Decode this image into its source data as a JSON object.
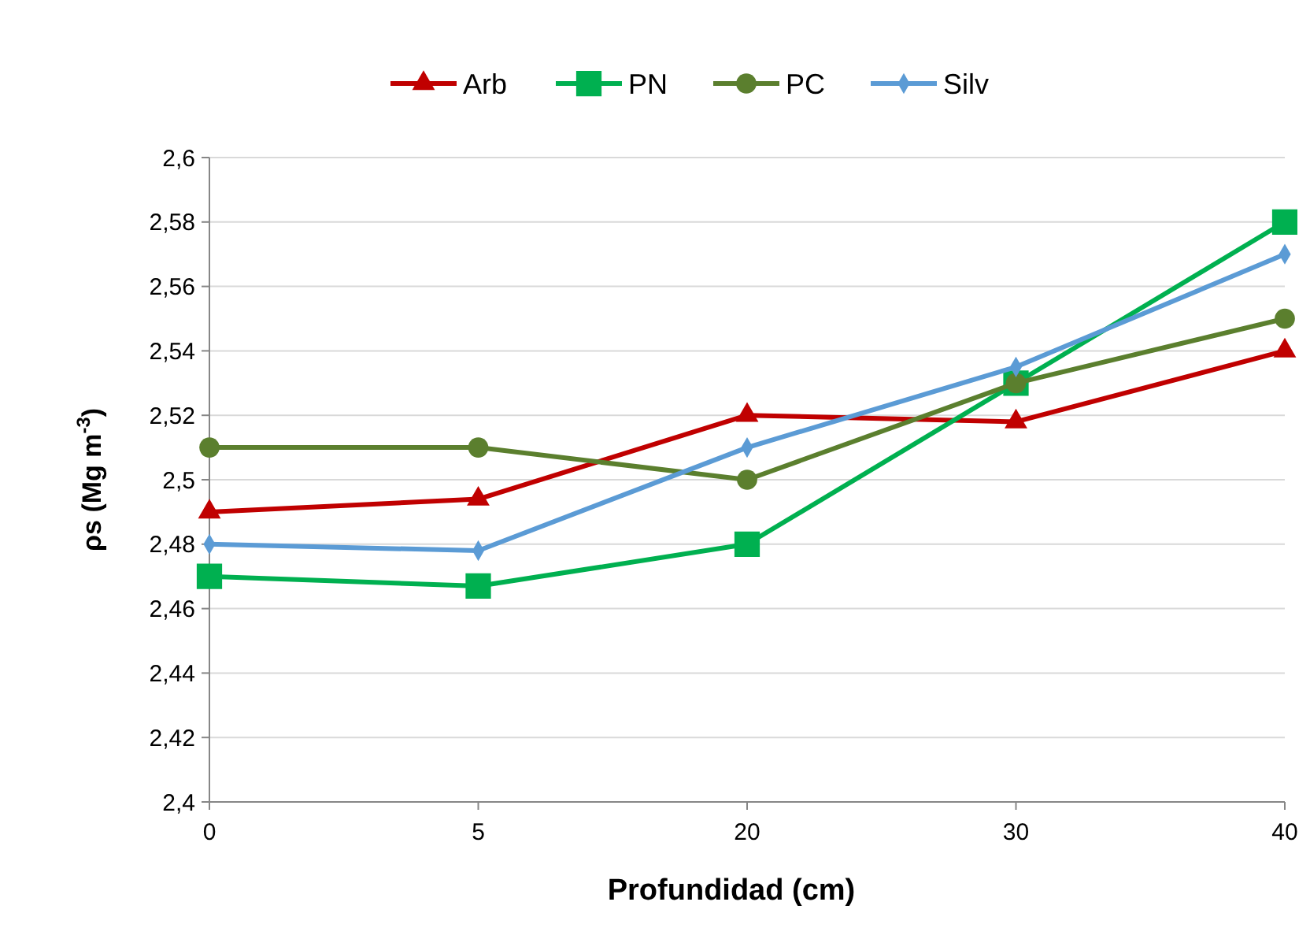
{
  "chart_data": {
    "type": "line",
    "xlabel": "Profundidad (cm)",
    "ylabel": "ρs (Mg m$^{-3}$)",
    "categories": [
      "0",
      "5",
      "20",
      "30",
      "40"
    ],
    "ylim": [
      2.4,
      2.6
    ],
    "yticks": [
      {
        "value": 2.4,
        "label": "2,4"
      },
      {
        "value": 2.42,
        "label": "2,42"
      },
      {
        "value": 2.44,
        "label": "2,44"
      },
      {
        "value": 2.46,
        "label": "2,46"
      },
      {
        "value": 2.48,
        "label": "2,48"
      },
      {
        "value": 2.5,
        "label": "2,5"
      },
      {
        "value": 2.52,
        "label": "2,52"
      },
      {
        "value": 2.54,
        "label": "2,54"
      },
      {
        "value": 2.56,
        "label": "2,56"
      },
      {
        "value": 2.58,
        "label": "2,58"
      },
      {
        "value": 2.6,
        "label": "2,6"
      }
    ],
    "grid": "y",
    "legend": "top",
    "series": [
      {
        "name": "Arb",
        "color": "#c00000",
        "marker": "triangle",
        "values": [
          2.49,
          2.494,
          2.52,
          2.518,
          2.54
        ]
      },
      {
        "name": "PN",
        "color": "#00b050",
        "marker": "square",
        "values": [
          2.47,
          2.467,
          2.48,
          2.53,
          2.58
        ]
      },
      {
        "name": "PC",
        "color": "#5b7f2e",
        "marker": "circle",
        "values": [
          2.51,
          2.51,
          2.5,
          2.53,
          2.55
        ]
      },
      {
        "name": "Silv",
        "color": "#5b9bd5",
        "marker": "diamond",
        "values": [
          2.48,
          2.478,
          2.51,
          2.535,
          2.57
        ]
      }
    ]
  }
}
